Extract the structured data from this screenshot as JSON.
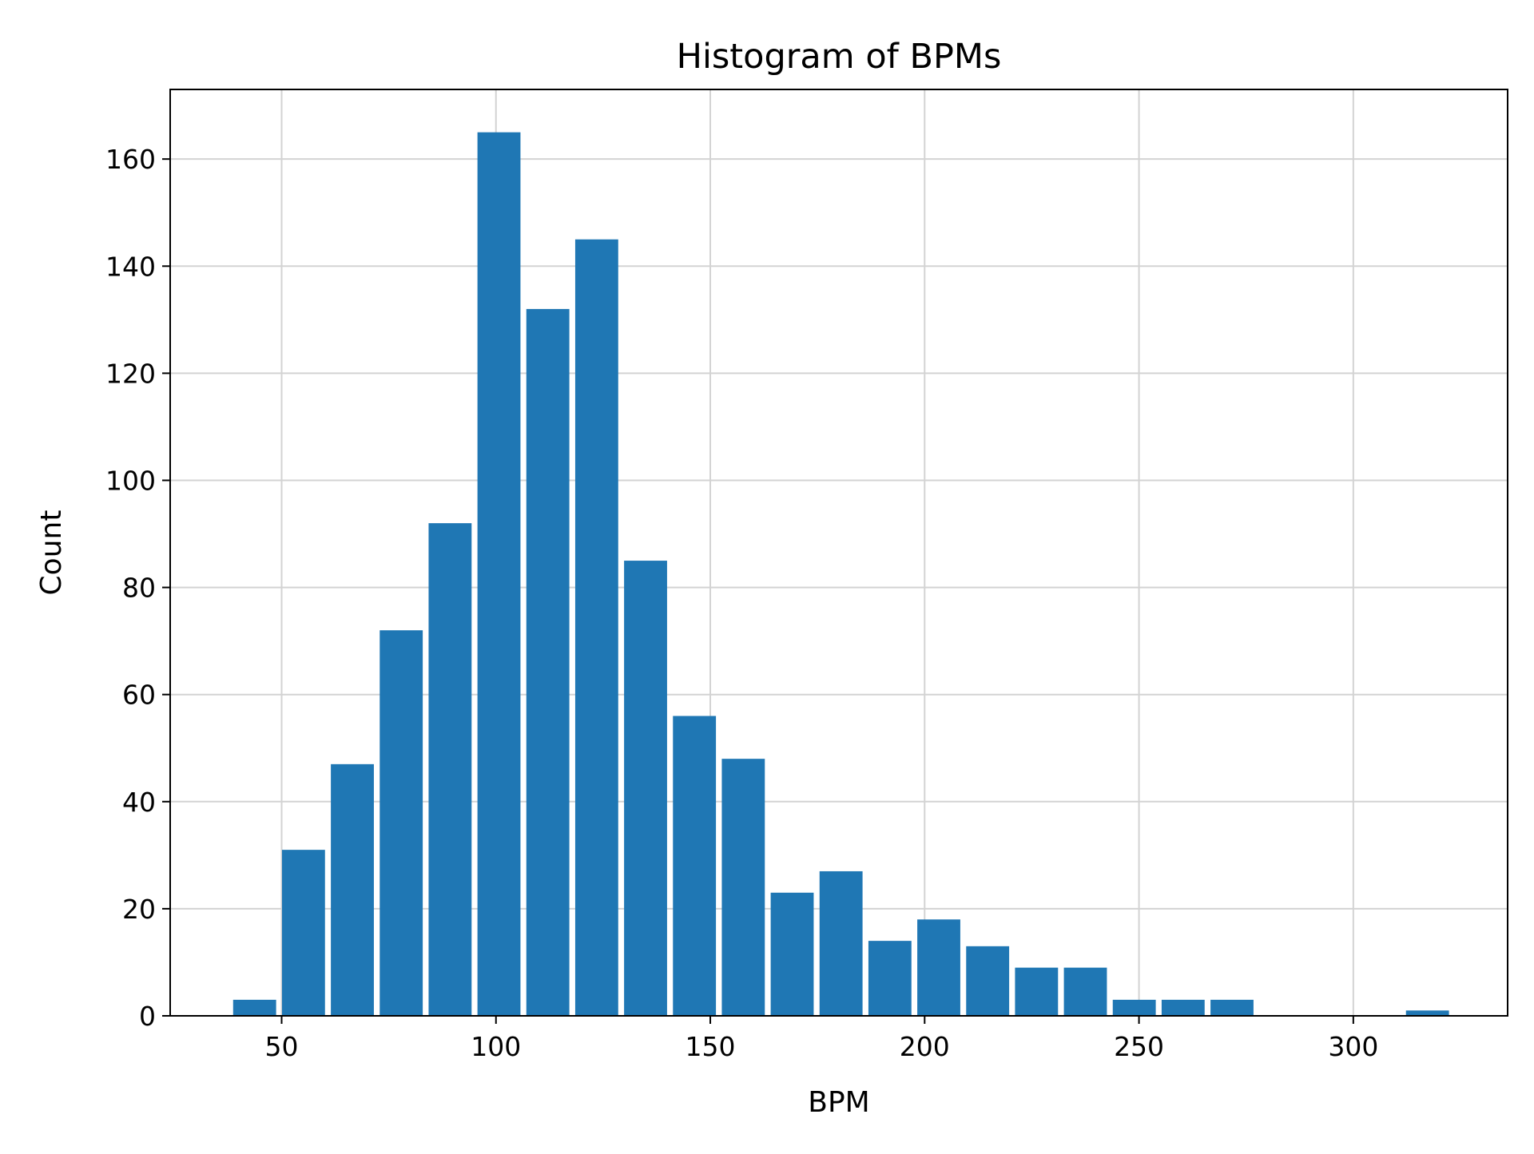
{
  "chart_data": {
    "type": "bar",
    "title": "Histogram of BPMs",
    "xlabel": "BPM",
    "ylabel": "Count",
    "xlim": [
      24,
      336
    ],
    "ylim": [
      0,
      173
    ],
    "xticks": [
      50,
      100,
      150,
      200,
      250,
      300
    ],
    "yticks": [
      0,
      20,
      40,
      60,
      80,
      100,
      120,
      140,
      160
    ],
    "grid": true,
    "bar_color": "#1f77b4",
    "bins": [
      {
        "x0": 38.0,
        "x1": 49.4,
        "count": 3
      },
      {
        "x0": 49.4,
        "x1": 60.8,
        "count": 31
      },
      {
        "x0": 60.8,
        "x1": 72.2,
        "count": 47
      },
      {
        "x0": 72.2,
        "x1": 83.6,
        "count": 72
      },
      {
        "x0": 83.6,
        "x1": 95.0,
        "count": 92
      },
      {
        "x0": 95.0,
        "x1": 106.4,
        "count": 165
      },
      {
        "x0": 106.4,
        "x1": 117.8,
        "count": 132
      },
      {
        "x0": 117.8,
        "x1": 129.2,
        "count": 145
      },
      {
        "x0": 129.2,
        "x1": 140.6,
        "count": 85
      },
      {
        "x0": 140.6,
        "x1": 152.0,
        "count": 56
      },
      {
        "x0": 152.0,
        "x1": 163.4,
        "count": 48
      },
      {
        "x0": 163.4,
        "x1": 174.8,
        "count": 23
      },
      {
        "x0": 174.8,
        "x1": 186.2,
        "count": 27
      },
      {
        "x0": 186.2,
        "x1": 197.6,
        "count": 14
      },
      {
        "x0": 197.6,
        "x1": 209.0,
        "count": 18
      },
      {
        "x0": 209.0,
        "x1": 220.4,
        "count": 13
      },
      {
        "x0": 220.4,
        "x1": 231.8,
        "count": 9
      },
      {
        "x0": 231.8,
        "x1": 243.2,
        "count": 9
      },
      {
        "x0": 243.2,
        "x1": 254.6,
        "count": 3
      },
      {
        "x0": 254.6,
        "x1": 266.0,
        "count": 3
      },
      {
        "x0": 266.0,
        "x1": 277.4,
        "count": 3
      },
      {
        "x0": 277.4,
        "x1": 288.8,
        "count": 0
      },
      {
        "x0": 288.8,
        "x1": 300.2,
        "count": 0
      },
      {
        "x0": 300.2,
        "x1": 311.6,
        "count": 0
      },
      {
        "x0": 311.6,
        "x1": 323.0,
        "count": 1
      }
    ]
  }
}
